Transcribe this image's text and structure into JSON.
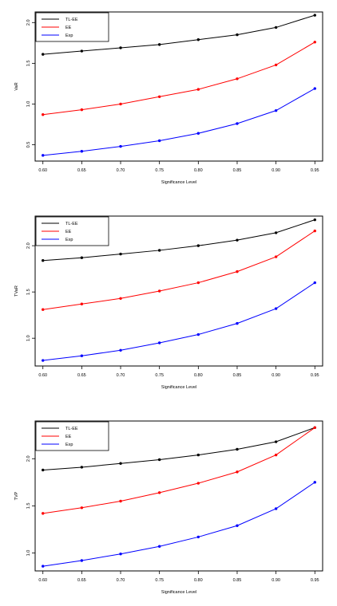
{
  "chart_data": [
    {
      "type": "line",
      "title": "",
      "xlabel": "Significance Level",
      "ylabel": "VaR",
      "x": [
        0.6,
        0.65,
        0.7,
        0.75,
        0.8,
        0.85,
        0.9,
        0.95
      ],
      "x_tick_labels": [
        "0.60",
        "0.65",
        "0.70",
        "0.75",
        "0.80",
        "0.85",
        "0.90",
        "0.95"
      ],
      "y_ticks": [
        0.5,
        1.0,
        1.5,
        2.0
      ],
      "y_tick_labels": [
        "0.5",
        "1.0",
        "1.5",
        "2.0"
      ],
      "xlim": [
        0.59,
        0.96
      ],
      "ylim": [
        0.3,
        2.13
      ],
      "grid": false,
      "legend_position": "top-left",
      "series": [
        {
          "name": "TL-EE",
          "color": "#000000",
          "values": [
            1.61,
            1.65,
            1.69,
            1.73,
            1.79,
            1.85,
            1.94,
            2.09
          ]
        },
        {
          "name": "EE",
          "color": "#ff0000",
          "values": [
            0.87,
            0.93,
            1.0,
            1.09,
            1.18,
            1.31,
            1.48,
            1.76
          ]
        },
        {
          "name": "Exp",
          "color": "#0000ff",
          "values": [
            0.37,
            0.42,
            0.48,
            0.55,
            0.64,
            0.76,
            0.92,
            1.19
          ]
        }
      ]
    },
    {
      "type": "line",
      "title": "",
      "xlabel": "Significance Level",
      "ylabel": "TVaR",
      "x": [
        0.6,
        0.65,
        0.7,
        0.75,
        0.8,
        0.85,
        0.9,
        0.95
      ],
      "x_tick_labels": [
        "0.60",
        "0.65",
        "0.70",
        "0.75",
        "0.80",
        "0.85",
        "0.90",
        "0.95"
      ],
      "y_ticks": [
        1.0,
        1.5,
        2.0
      ],
      "y_tick_labels": [
        "1.0",
        "1.5",
        "2.0"
      ],
      "xlim": [
        0.59,
        0.96
      ],
      "ylim": [
        0.7,
        2.32
      ],
      "grid": false,
      "legend_position": "top-left",
      "series": [
        {
          "name": "TL-EE",
          "color": "#000000",
          "values": [
            1.84,
            1.87,
            1.91,
            1.95,
            2.0,
            2.06,
            2.14,
            2.28
          ]
        },
        {
          "name": "EE",
          "color": "#ff0000",
          "values": [
            1.31,
            1.37,
            1.43,
            1.51,
            1.6,
            1.72,
            1.88,
            2.16
          ]
        },
        {
          "name": "Exp",
          "color": "#0000ff",
          "values": [
            0.76,
            0.81,
            0.87,
            0.95,
            1.04,
            1.16,
            1.32,
            1.6
          ]
        }
      ]
    },
    {
      "type": "line",
      "title": "",
      "xlabel": "Significance Level",
      "ylabel": "TVP",
      "x": [
        0.6,
        0.65,
        0.7,
        0.75,
        0.8,
        0.85,
        0.9,
        0.95
      ],
      "x_tick_labels": [
        "0.60",
        "0.65",
        "0.70",
        "0.75",
        "0.80",
        "0.85",
        "0.90",
        "0.95"
      ],
      "y_ticks": [
        1.0,
        1.5,
        2.0
      ],
      "y_tick_labels": [
        "1.0",
        "1.5",
        "2.0"
      ],
      "xlim": [
        0.59,
        0.96
      ],
      "ylim": [
        0.81,
        2.4
      ],
      "grid": false,
      "legend_position": "top-left",
      "series": [
        {
          "name": "TL-EE",
          "color": "#000000",
          "values": [
            1.88,
            1.91,
            1.95,
            1.99,
            2.04,
            2.1,
            2.18,
            2.33
          ]
        },
        {
          "name": "EE",
          "color": "#ff0000",
          "values": [
            1.42,
            1.48,
            1.55,
            1.64,
            1.74,
            1.86,
            2.04,
            2.33
          ]
        },
        {
          "name": "Exp",
          "color": "#0000ff",
          "values": [
            0.86,
            0.92,
            0.99,
            1.07,
            1.17,
            1.29,
            1.47,
            1.75
          ]
        }
      ]
    }
  ]
}
